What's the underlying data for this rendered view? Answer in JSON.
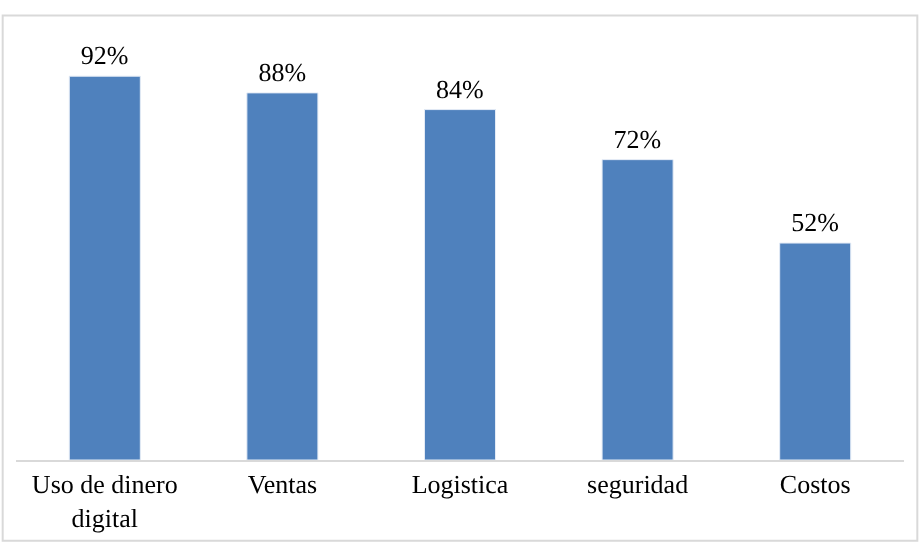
{
  "chart_data": {
    "type": "bar",
    "categories": [
      "Uso de dinero digital",
      "Ventas",
      "Logistica",
      "seguridad",
      "Costos"
    ],
    "values": [
      92,
      88,
      84,
      72,
      52
    ],
    "value_labels": [
      "92%",
      "88%",
      "84%",
      "72%",
      "52%"
    ],
    "color": "#4f81bd",
    "tick_labels": "x",
    "legend": false
  }
}
